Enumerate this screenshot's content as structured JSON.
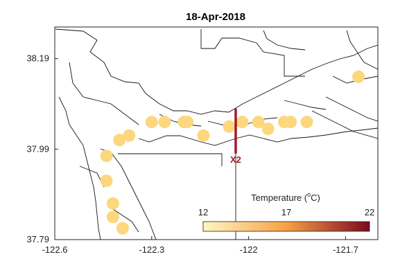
{
  "title": "18-Apr-2018",
  "colors": {
    "cmap_low": "#fff7c2",
    "cmap_mid": "#f7a046",
    "cmap_high": "#7a0a1e",
    "station_marker": "#a31b2a",
    "sample_point": "#fdd77e"
  },
  "chart_data": {
    "type": "scatter",
    "xlim": [
      -122.6,
      -121.6
    ],
    "ylim": [
      37.79,
      38.26
    ],
    "x_ticks": [
      -122.6,
      -122.3,
      -122,
      -121.7
    ],
    "x_tick_labels": [
      "-122.6",
      "-122.3",
      "-122",
      "-121.7"
    ],
    "y_ticks": [
      37.79,
      37.99,
      38.19
    ],
    "y_tick_labels": [
      "37.79",
      "37.99",
      "38.19"
    ],
    "grid": false,
    "colorbar": {
      "label_main": "Temperature (",
      "label_sup": "o",
      "label_end": "C)",
      "range": [
        12,
        22
      ],
      "tick_values": [
        12,
        17,
        22
      ],
      "tick_labels": [
        "12",
        "17",
        "22"
      ],
      "placement": "lower-right"
    },
    "station": {
      "label": "X2",
      "lon": -122.04,
      "lat_range": [
        37.98,
        38.08
      ]
    },
    "points": [
      {
        "lon": -121.66,
        "lat": 38.15,
        "temp": 15.8
      },
      {
        "lon": -121.82,
        "lat": 38.05,
        "temp": 15.9
      },
      {
        "lon": -121.87,
        "lat": 38.05,
        "temp": 15.8
      },
      {
        "lon": -121.89,
        "lat": 38.05,
        "temp": 15.9
      },
      {
        "lon": -121.94,
        "lat": 38.035,
        "temp": 15.8
      },
      {
        "lon": -121.97,
        "lat": 38.05,
        "temp": 15.9
      },
      {
        "lon": -122.02,
        "lat": 38.05,
        "temp": 15.8
      },
      {
        "lon": -122.06,
        "lat": 38.04,
        "temp": 15.9
      },
      {
        "lon": -122.14,
        "lat": 38.02,
        "temp": 15.8
      },
      {
        "lon": -122.19,
        "lat": 38.05,
        "temp": 15.9
      },
      {
        "lon": -122.2,
        "lat": 38.05,
        "temp": 15.8
      },
      {
        "lon": -122.26,
        "lat": 38.05,
        "temp": 15.9
      },
      {
        "lon": -122.3,
        "lat": 38.05,
        "temp": 15.8
      },
      {
        "lon": -122.37,
        "lat": 38.02,
        "temp": 15.9
      },
      {
        "lon": -122.4,
        "lat": 38.01,
        "temp": 15.8
      },
      {
        "lon": -122.44,
        "lat": 37.975,
        "temp": 15.9
      },
      {
        "lon": -122.44,
        "lat": 37.92,
        "temp": 15.8
      },
      {
        "lon": -122.42,
        "lat": 37.87,
        "temp": 15.9
      },
      {
        "lon": -122.42,
        "lat": 37.84,
        "temp": 15.8
      },
      {
        "lon": -122.39,
        "lat": 37.815,
        "temp": 15.9
      }
    ]
  }
}
